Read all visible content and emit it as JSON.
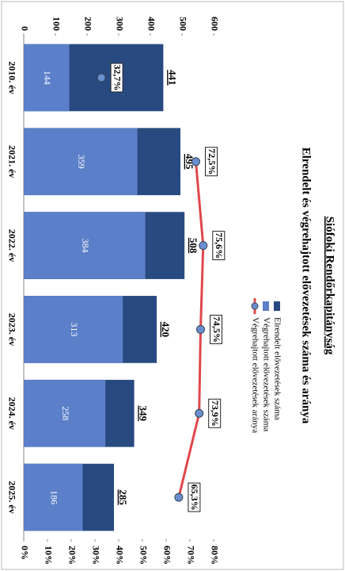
{
  "chart_data": {
    "type": "bar-line",
    "title": "Siófoki Rendőrkapitányság",
    "subtitle": "Elrendelt és végrehajtott elővezetések száma és aránya",
    "categories": [
      "2010. év",
      "2021. év",
      "2022. év",
      "2023. év",
      "2024. év",
      "2025. év"
    ],
    "series": [
      {
        "name": "Elrendelt elővezetések száma",
        "color": "#284a80",
        "values": [
          441,
          495,
          508,
          420,
          349,
          285
        ]
      },
      {
        "name": "Végrehajtott elővezetések száma",
        "color": "#5b7fc8",
        "values": [
          144,
          359,
          384,
          313,
          258,
          186
        ]
      },
      {
        "name": "Végrehajtott elővezetések aránya",
        "color": "#e0474c",
        "axis": "y2",
        "values": [
          32.7,
          72.5,
          75.6,
          74.5,
          73.9,
          65.3
        ],
        "value_labels": [
          "32,7%",
          "72,5%",
          "75,6%",
          "74,5%",
          "73,9%",
          "65,3%"
        ]
      }
    ],
    "ylim": [
      0,
      600
    ],
    "yticks": [
      0,
      100,
      200,
      300,
      400,
      500,
      600
    ],
    "y2lim": [
      0,
      80
    ],
    "y2ticks": [
      {
        "value": 0,
        "label": "0%"
      },
      {
        "value": 10,
        "label": "10%"
      },
      {
        "value": 20,
        "label": "20%"
      },
      {
        "value": 30,
        "label": "30%"
      },
      {
        "value": 40,
        "label": "40%"
      },
      {
        "value": 50,
        "label": "50%"
      },
      {
        "value": 60,
        "label": "60%"
      },
      {
        "value": 70,
        "label": "70%"
      },
      {
        "value": 80,
        "label": "80%"
      }
    ]
  }
}
